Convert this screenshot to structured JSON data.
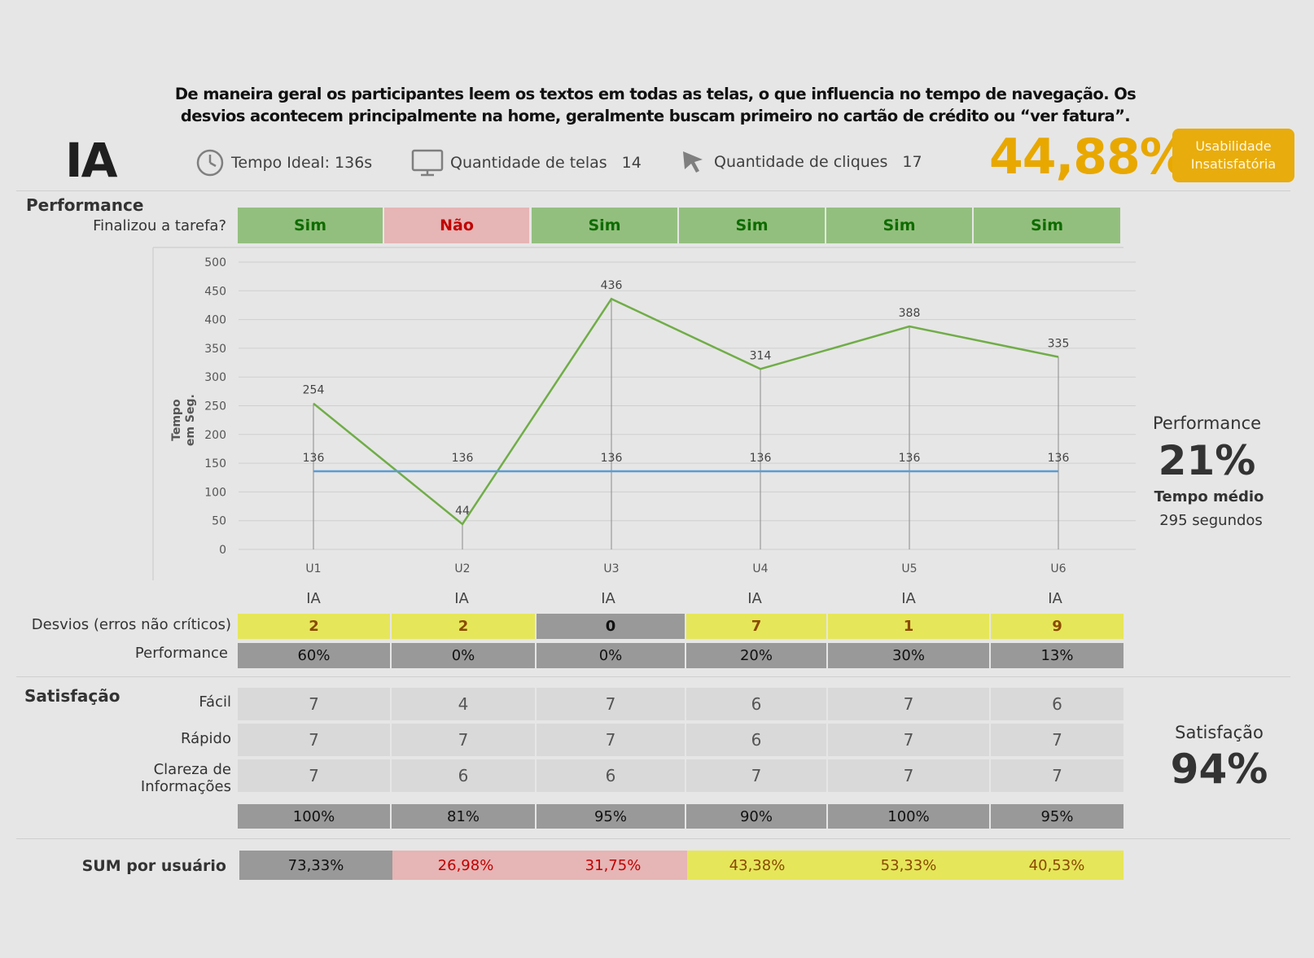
{
  "intro_text": "De maneira geral os participantes leem os textos em todas as telas, o que influencia no tempo de navegação. Os desvios acontecem principalmente na home, geralmente buscam primeiro no cartão de crédito ou “ver fatura”.",
  "header": {
    "title": "IA",
    "tempo_ideal": "Tempo Ideal: 136s",
    "telas_label": "Quantidade de telas",
    "telas_value": "14",
    "cliques_label": "Quantidade de cliques",
    "cliques_value": "17",
    "score": "44,88%",
    "badge_line1": "Usabilidade",
    "badge_line2": "Insatisfatória",
    "score_color": "#e8a800"
  },
  "performance": {
    "section_title": "Performance",
    "finalizou_label": "Finalizou a tarefa?",
    "finalizou": [
      "Sim",
      "Não",
      "Sim",
      "Sim",
      "Sim",
      "Sim"
    ],
    "ia_labels": [
      "IA",
      "IA",
      "IA",
      "IA",
      "IA",
      "IA"
    ],
    "desvios_label": "Desvios (erros não críticos)",
    "desvios": [
      "2",
      "2",
      "0",
      "7",
      "1",
      "9"
    ],
    "perf_label": "Performance",
    "perf": [
      "60%",
      "0%",
      "0%",
      "20%",
      "30%",
      "13%"
    ],
    "side_title": "Performance",
    "side_value": "21%",
    "tempo_medio_label": "Tempo médio",
    "tempo_medio_value": "295 segundos"
  },
  "satisfacao": {
    "section_title": "Satisfação",
    "facil_label": "Fácil",
    "facil": [
      "7",
      "4",
      "7",
      "6",
      "7",
      "6"
    ],
    "rapido_label": "Rápido",
    "rapido": [
      "7",
      "7",
      "7",
      "6",
      "7",
      "7"
    ],
    "clareza_label_1": "Clareza de",
    "clareza_label_2": "Informações",
    "clareza": [
      "7",
      "6",
      "6",
      "7",
      "7",
      "7"
    ],
    "totals": [
      "100%",
      "81%",
      "95%",
      "90%",
      "100%",
      "95%"
    ],
    "side_title": "Satisfação",
    "side_value": "94%"
  },
  "sum": {
    "label": "SUM por usuário",
    "values": [
      "73,33%",
      "26,98%",
      "31,75%",
      "43,38%",
      "53,33%",
      "40,53%"
    ]
  },
  "chart_data": {
    "type": "line",
    "categories": [
      "U1",
      "U2",
      "U3",
      "U4",
      "U5",
      "U6"
    ],
    "series": [
      {
        "name": "Tempo",
        "values": [
          254,
          44,
          436,
          314,
          388,
          335
        ],
        "color": "#70ad47"
      },
      {
        "name": "Tempo Ideal",
        "values": [
          136,
          136,
          136,
          136,
          136,
          136
        ],
        "color": "#5b9bd5"
      }
    ],
    "ylabel_1": "Tempo",
    "ylabel_2": "em Seg.",
    "ylim": [
      0,
      500
    ],
    "yticks": [
      0,
      50,
      100,
      150,
      200,
      250,
      300,
      350,
      400,
      450,
      500
    ],
    "grid": true
  }
}
